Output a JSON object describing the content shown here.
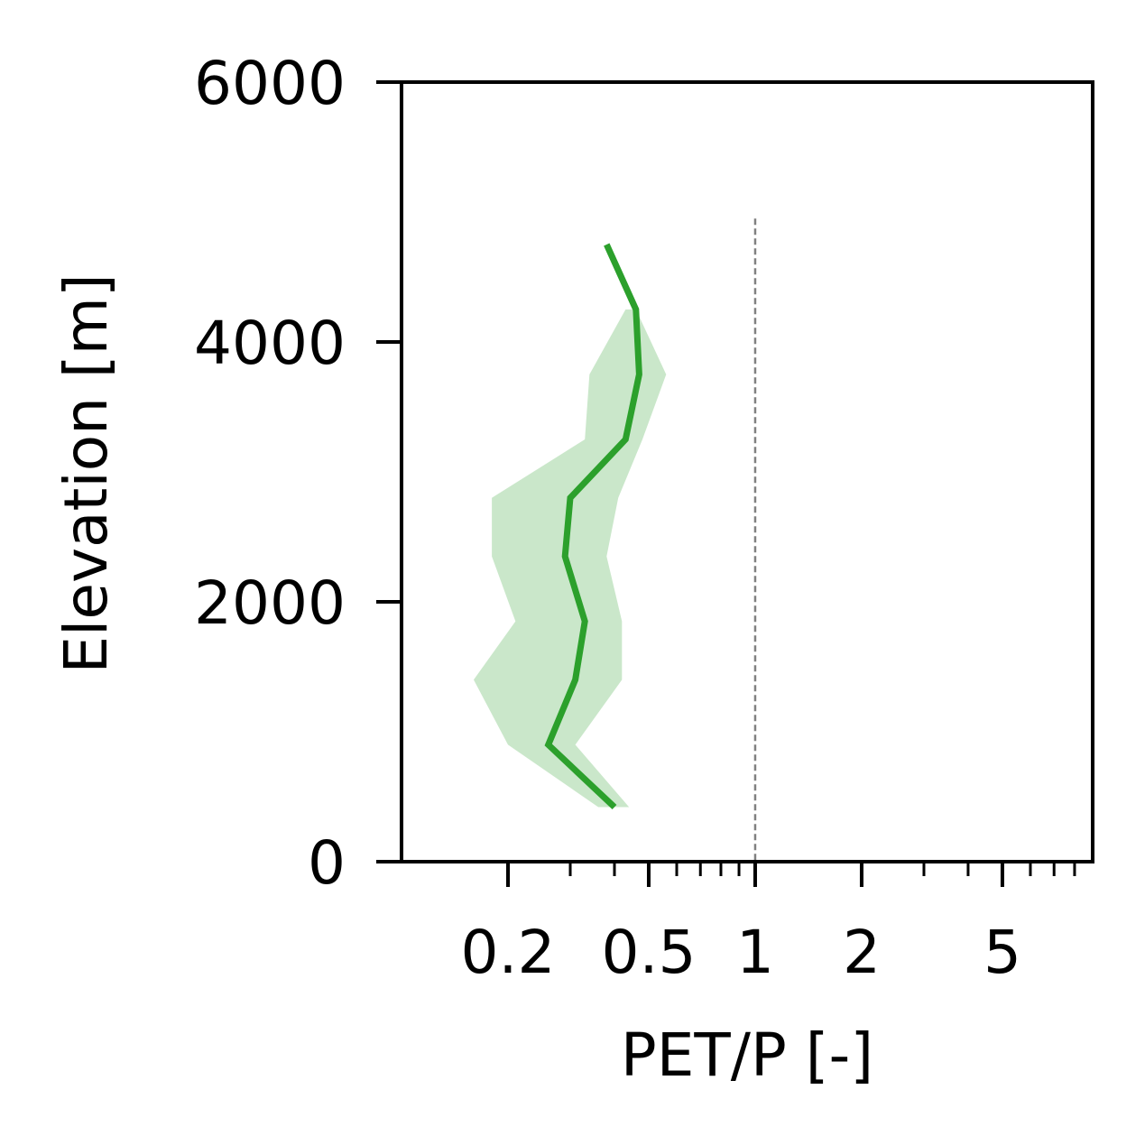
{
  "chart_data": {
    "type": "line",
    "xlabel": "PET/P [-]",
    "ylabel": "Elevation [m]",
    "x_scale": "log",
    "xlim": [
      0.1,
      9
    ],
    "ylim": [
      0,
      6000
    ],
    "x_ticks": [
      0.2,
      0.5,
      1,
      2,
      5
    ],
    "x_tick_labels": [
      "0.2",
      "0.5",
      "1",
      "2",
      "5"
    ],
    "y_ticks": [
      0,
      2000,
      4000,
      6000
    ],
    "y_tick_labels": [
      "0",
      "2000",
      "4000",
      "6000"
    ],
    "grid": false,
    "reference_line": {
      "x": 1,
      "y_range": [
        0,
        4950
      ],
      "style": "dashed",
      "color": "#808080"
    },
    "series": [
      {
        "color": "#2ca02c",
        "points": [
          {
            "elevation": 4750,
            "value": 0.38
          },
          {
            "elevation": 4250,
            "value": 0.46
          },
          {
            "elevation": 3750,
            "value": 0.47
          },
          {
            "elevation": 3250,
            "value": 0.43
          },
          {
            "elevation": 2800,
            "value": 0.3
          },
          {
            "elevation": 2350,
            "value": 0.29
          },
          {
            "elevation": 1850,
            "value": 0.33
          },
          {
            "elevation": 1400,
            "value": 0.31
          },
          {
            "elevation": 900,
            "value": 0.26
          },
          {
            "elevation": 420,
            "value": 0.4
          }
        ],
        "band": {
          "color": "#2ca02c",
          "opacity": 0.25,
          "points": [
            {
              "elevation": 4250,
              "low": 0.43,
              "high": 0.46
            },
            {
              "elevation": 3750,
              "low": 0.34,
              "high": 0.56
            },
            {
              "elevation": 3250,
              "low": 0.33,
              "high": 0.48
            },
            {
              "elevation": 2800,
              "low": 0.18,
              "high": 0.41
            },
            {
              "elevation": 2350,
              "low": 0.18,
              "high": 0.38
            },
            {
              "elevation": 1850,
              "low": 0.21,
              "high": 0.42
            },
            {
              "elevation": 1400,
              "low": 0.16,
              "high": 0.42
            },
            {
              "elevation": 900,
              "low": 0.2,
              "high": 0.31
            },
            {
              "elevation": 420,
              "low": 0.36,
              "high": 0.44
            }
          ]
        }
      }
    ]
  }
}
